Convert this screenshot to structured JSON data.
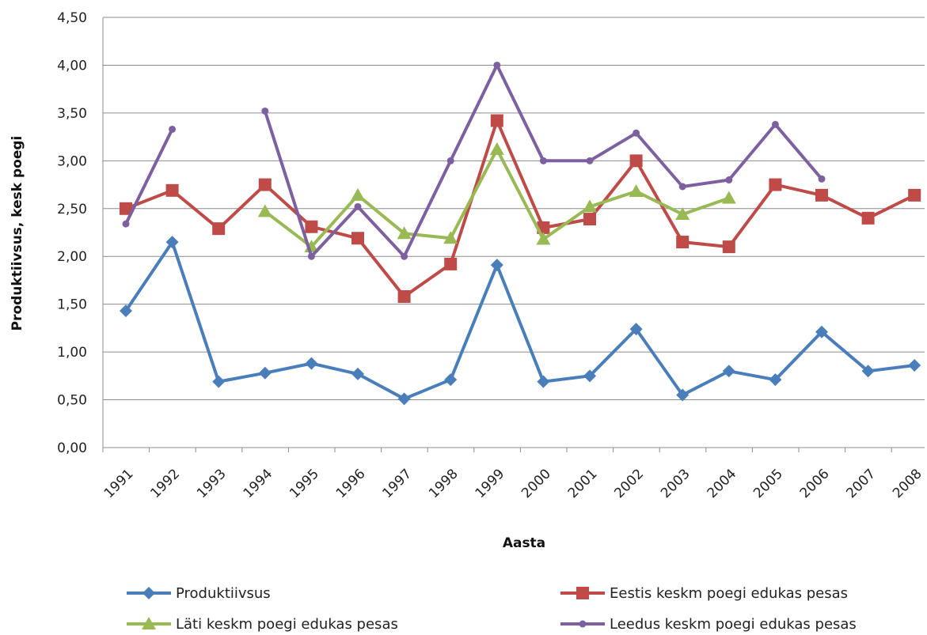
{
  "chart_data": {
    "type": "line",
    "xlabel": "Aasta",
    "ylabel": "Produktiivsus, kesk poegi",
    "ylim": [
      0,
      4.5
    ],
    "y_tick_labels": [
      "0,00",
      "0,50",
      "1,00",
      "1,50",
      "2,00",
      "2,50",
      "3,00",
      "3,50",
      "4,00",
      "4,50"
    ],
    "grid": "horizontal",
    "legend_position": "bottom",
    "categories": [
      "1991",
      "1992",
      "1993",
      "1994",
      "1995",
      "1996",
      "1997",
      "1998",
      "1999",
      "2000",
      "2001",
      "2002",
      "2003",
      "2004",
      "2005",
      "2006",
      "2007",
      "2008"
    ],
    "series": [
      {
        "name": "Produktiivsus",
        "color": "#4a7ebb",
        "marker": "diamond",
        "values": [
          1.43,
          2.15,
          0.69,
          0.78,
          0.88,
          0.77,
          0.51,
          0.71,
          1.91,
          0.69,
          0.75,
          1.24,
          0.55,
          0.8,
          0.71,
          1.21,
          0.8,
          0.86
        ]
      },
      {
        "name": "Eestis keskm poegi edukas pesas",
        "color": "#be4b48",
        "marker": "square",
        "values": [
          2.5,
          2.69,
          2.29,
          2.75,
          2.31,
          2.19,
          1.58,
          1.92,
          3.42,
          2.3,
          2.39,
          3.0,
          2.15,
          2.1,
          2.75,
          2.64,
          2.4,
          2.64
        ]
      },
      {
        "name": "Läti keskm poegi edukas pesas",
        "color": "#98b954",
        "marker": "triangle",
        "values": [
          null,
          null,
          null,
          2.47,
          2.1,
          2.64,
          2.24,
          2.19,
          3.12,
          2.18,
          2.52,
          2.68,
          2.44,
          2.61,
          null,
          null,
          null,
          null
        ]
      },
      {
        "name": "Leedus keskm poegi edukas pesas",
        "color": "#7d60a0",
        "marker": "circle",
        "values": [
          2.34,
          3.33,
          null,
          3.52,
          2.0,
          2.52,
          2.0,
          3.0,
          4.0,
          3.0,
          3.0,
          3.29,
          2.73,
          2.8,
          3.38,
          2.81,
          null,
          null
        ]
      }
    ]
  }
}
